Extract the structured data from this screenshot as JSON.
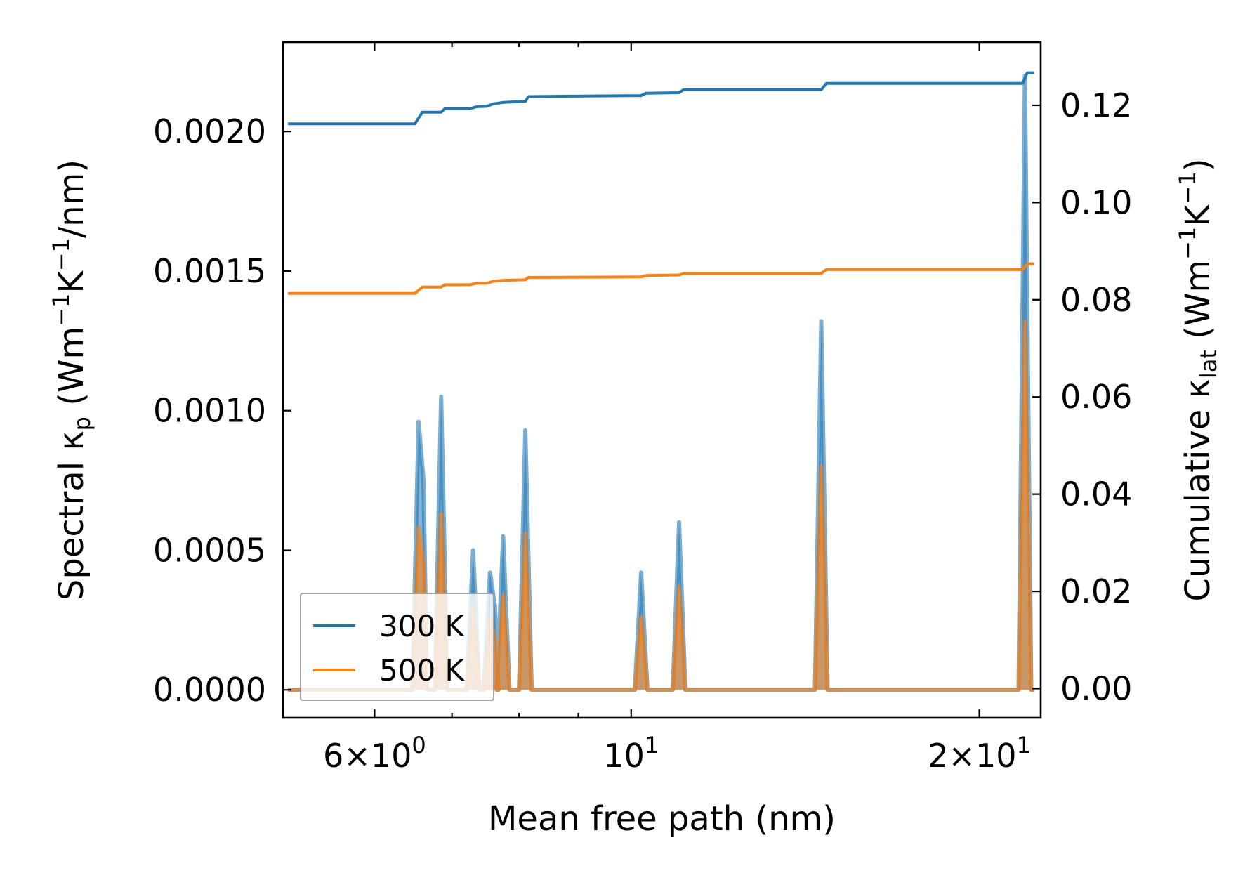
{
  "chart_data": {
    "type": "line",
    "x_scale": "log",
    "xlabel": "Mean free path (nm)",
    "xlim": [
      5.0,
      22.6
    ],
    "x_ticks": [
      {
        "value": 6,
        "mantissa": "6",
        "times": "×",
        "base": "10",
        "exp": "0"
      },
      {
        "value": 10,
        "mantissa": "",
        "times": "",
        "base": "10",
        "exp": "1"
      },
      {
        "value": 20,
        "mantissa": "2",
        "times": "×",
        "base": "10",
        "exp": "1"
      }
    ],
    "left_axis": {
      "label_main": "Spectral κ",
      "label_sub": "p",
      "label_units_a": " (Wm",
      "label_sup_a": "−1",
      "label_units_b": "K",
      "label_sup_b": "−1",
      "label_units_c": "/nm)",
      "ylim": [
        -0.0001,
        0.00232
      ],
      "ticks": [
        "0.0000",
        "0.0005",
        "0.0010",
        "0.0015",
        "0.0020"
      ],
      "tick_values": [
        0.0,
        0.0005,
        0.001,
        0.0015,
        0.002
      ]
    },
    "right_axis": {
      "label_main": "Cumulative κ",
      "label_sub": "lat",
      "label_units_a": " (Wm",
      "label_sup_a": "−1",
      "label_units_b": "K",
      "label_sup_b": "−1",
      "label_units_c": ")",
      "ylim": [
        -0.006,
        0.133
      ],
      "ticks": [
        "0.00",
        "0.02",
        "0.04",
        "0.06",
        "0.08",
        "0.10",
        "0.12"
      ],
      "tick_values": [
        0.0,
        0.02,
        0.04,
        0.06,
        0.08,
        0.1,
        0.12
      ]
    },
    "series": [
      {
        "name": "300 K",
        "color": "#1f77b4",
        "spectral": [
          {
            "x": 6.55,
            "peak": 0.00096,
            "shoulder": 0.00075
          },
          {
            "x": 6.85,
            "peak": 0.00105
          },
          {
            "x": 7.3,
            "peak": 0.0005
          },
          {
            "x": 7.55,
            "peak": 0.00042,
            "shoulder": 0.0003
          },
          {
            "x": 7.75,
            "peak": 0.00055
          },
          {
            "x": 8.1,
            "peak": 0.00093
          },
          {
            "x": 10.2,
            "peak": 0.00042
          },
          {
            "x": 11.0,
            "peak": 0.0006
          },
          {
            "x": 14.6,
            "peak": 0.00132
          },
          {
            "x": 21.9,
            "peak": 0.0022
          }
        ],
        "cumulative": [
          {
            "x": 5.05,
            "y": 0.1162
          },
          {
            "x": 6.5,
            "y": 0.1162
          },
          {
            "x": 6.6,
            "y": 0.1186
          },
          {
            "x": 6.85,
            "y": 0.1186
          },
          {
            "x": 6.9,
            "y": 0.1193
          },
          {
            "x": 7.25,
            "y": 0.1193
          },
          {
            "x": 7.35,
            "y": 0.1197
          },
          {
            "x": 7.5,
            "y": 0.1198
          },
          {
            "x": 7.6,
            "y": 0.1203
          },
          {
            "x": 7.75,
            "y": 0.1206
          },
          {
            "x": 8.1,
            "y": 0.1208
          },
          {
            "x": 8.15,
            "y": 0.1218
          },
          {
            "x": 10.2,
            "y": 0.122
          },
          {
            "x": 10.3,
            "y": 0.1225
          },
          {
            "x": 11.0,
            "y": 0.1226
          },
          {
            "x": 11.1,
            "y": 0.1232
          },
          {
            "x": 14.6,
            "y": 0.1232
          },
          {
            "x": 14.75,
            "y": 0.1245
          },
          {
            "x": 21.8,
            "y": 0.1245
          },
          {
            "x": 22.0,
            "y": 0.1267
          },
          {
            "x": 22.3,
            "y": 0.1267
          }
        ]
      },
      {
        "name": "500 K",
        "color": "#ff7f0e",
        "spectral": [
          {
            "x": 6.55,
            "peak": 0.00058,
            "shoulder": 0.00045
          },
          {
            "x": 6.85,
            "peak": 0.00063
          },
          {
            "x": 7.3,
            "peak": 0.0003
          },
          {
            "x": 7.55,
            "peak": 0.00026,
            "shoulder": 0.00018
          },
          {
            "x": 7.75,
            "peak": 0.00034
          },
          {
            "x": 8.1,
            "peak": 0.00056
          },
          {
            "x": 10.2,
            "peak": 0.00026
          },
          {
            "x": 11.0,
            "peak": 0.00037
          },
          {
            "x": 14.6,
            "peak": 0.0008
          },
          {
            "x": 21.9,
            "peak": 0.00132
          }
        ],
        "cumulative": [
          {
            "x": 5.05,
            "y": 0.0813
          },
          {
            "x": 6.5,
            "y": 0.0813
          },
          {
            "x": 6.6,
            "y": 0.0826
          },
          {
            "x": 6.85,
            "y": 0.0826
          },
          {
            "x": 6.9,
            "y": 0.0831
          },
          {
            "x": 7.25,
            "y": 0.0831
          },
          {
            "x": 7.35,
            "y": 0.0834
          },
          {
            "x": 7.5,
            "y": 0.0834
          },
          {
            "x": 7.6,
            "y": 0.0838
          },
          {
            "x": 7.75,
            "y": 0.084
          },
          {
            "x": 8.1,
            "y": 0.0841
          },
          {
            "x": 8.15,
            "y": 0.0846
          },
          {
            "x": 10.2,
            "y": 0.0847
          },
          {
            "x": 10.3,
            "y": 0.085
          },
          {
            "x": 11.0,
            "y": 0.0851
          },
          {
            "x": 11.1,
            "y": 0.0854
          },
          {
            "x": 14.6,
            "y": 0.0854
          },
          {
            "x": 14.75,
            "y": 0.0862
          },
          {
            "x": 21.8,
            "y": 0.0862
          },
          {
            "x": 22.0,
            "y": 0.0874
          },
          {
            "x": 22.3,
            "y": 0.0874
          }
        ]
      }
    ],
    "legend": {
      "location": "lower-left",
      "entries": [
        "300 K",
        "500 K"
      ]
    }
  }
}
